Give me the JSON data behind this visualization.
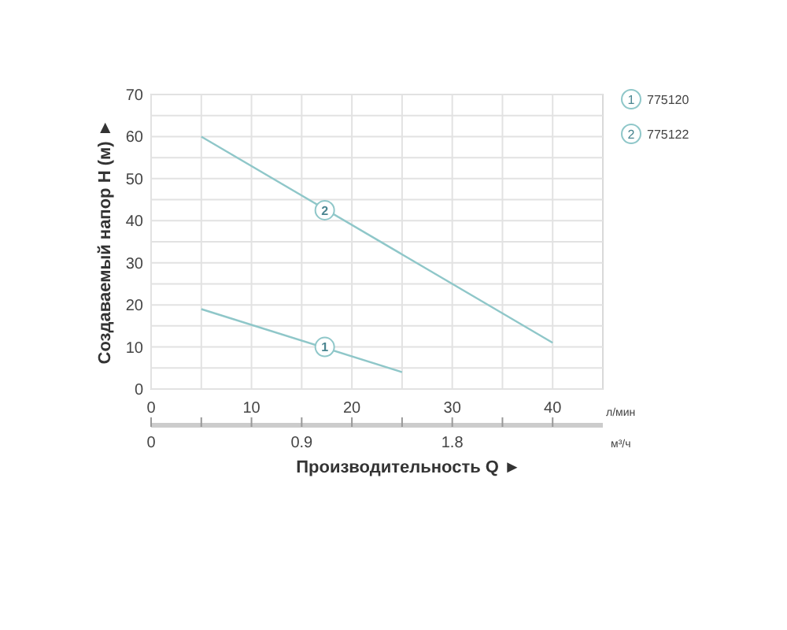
{
  "chart_data": {
    "type": "line",
    "xlabel": "Производительность Q ►",
    "ylabel": "Создаваемый напор H (м) ►",
    "xlim": [
      0,
      45
    ],
    "xticks": [
      0,
      {
        "value": 5,
        "label": null
      },
      10,
      {
        "value": 15,
        "label": null
      },
      20,
      {
        "value": 25,
        "label": null
      },
      30,
      {
        "value": 35,
        "label": null
      },
      40
    ],
    "ylim": [
      0,
      70
    ],
    "yticks": [
      0,
      {
        "value": 5,
        "label": null
      },
      10,
      {
        "value": 15,
        "label": null
      },
      20,
      {
        "value": 25,
        "label": null
      },
      30,
      {
        "value": 35,
        "label": null
      },
      40,
      {
        "value": 45,
        "label": null
      },
      50,
      {
        "value": 55,
        "label": null
      },
      60,
      {
        "value": 65,
        "label": null
      },
      70
    ],
    "x2lim": [
      0,
      2.7
    ],
    "x2ticks": [
      0,
      {
        "value": 0.3,
        "label": null
      },
      {
        "value": 0.6,
        "label": null
      },
      0.9,
      {
        "value": 1.2,
        "label": null
      },
      {
        "value": 1.5,
        "label": null
      },
      1.8,
      {
        "value": 2.1,
        "label": null
      },
      {
        "value": 2.4,
        "label": null
      }
    ],
    "grid": true,
    "legend": "top right",
    "line_style": "solid",
    "series": [
      {
        "name": "775120",
        "color": "#8fc7c9",
        "x": [
          5,
          25
        ],
        "values": [
          19,
          4
        ]
      },
      {
        "name": "775122",
        "color": "#8fc7c9",
        "x": [
          5,
          40
        ],
        "values": [
          60,
          11
        ]
      }
    ],
    "annotations": [
      {
        "text": "1",
        "x": 17.3,
        "y": 10
      },
      {
        "text": "2",
        "x": 17.3,
        "y": 42.5
      },
      "л/мин",
      "м³/ч"
    ]
  }
}
